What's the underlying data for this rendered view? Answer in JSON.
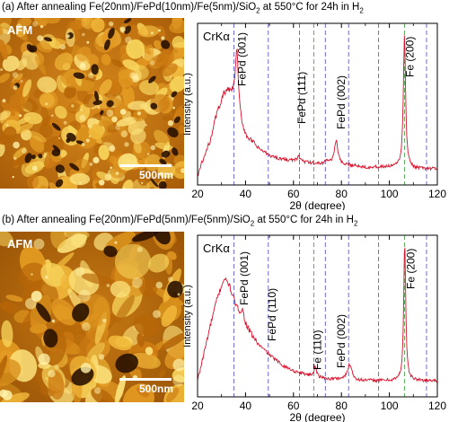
{
  "panels": [
    {
      "title_main": "(a) After annealing Fe(20nm)/FePd(10nm)/Fe(5nm)/SiO",
      "title_sub1": "2",
      "title_mid": " at 550",
      "title_deg": "°C",
      "title_end": " for 24h in H",
      "title_sub2": "2",
      "afm_label": "AFM",
      "scale_label": "500nm",
      "variant": "a"
    },
    {
      "title_main": "(b) After annealing Fe(20nm)/FePd(5nm)/Fe(5nm)/SiO",
      "title_sub1": "2",
      "title_mid": " at 550",
      "title_deg": "°C",
      "title_end": " for 24h in H",
      "title_sub2": "2",
      "afm_label": "AFM",
      "scale_label": "500nm",
      "variant": "b"
    }
  ],
  "colors": {
    "spectrum": "#d8122c",
    "ref_blue": "#5c5cc8",
    "ref_green": "#4aa84a"
  },
  "chart_data": [
    {
      "type": "line",
      "xlabel": "2θ (degree)",
      "ylabel": "Intensity (a.u.)",
      "source_label": "CrKα",
      "xlim": [
        20,
        120
      ],
      "xticks": [
        20,
        40,
        60,
        80,
        100,
        120
      ],
      "ref_lines_blue": [
        35.2,
        49.5,
        62.5,
        73.3,
        83.0,
        95.5,
        115.5
      ],
      "ref_lines_green": [
        68.5,
        106.3
      ],
      "annotations": [
        {
          "text": "FePd (001)",
          "x": 38.5
        },
        {
          "text": "FePd (111)",
          "x": 63.5
        },
        {
          "text": "FePd (002)",
          "x": 80.0
        },
        {
          "text": "Fe (200)",
          "x": 108.5
        }
      ],
      "baseline": [
        [
          20,
          0.06
        ],
        [
          25,
          0.26
        ],
        [
          28,
          0.44
        ],
        [
          31,
          0.56
        ],
        [
          33,
          0.57
        ],
        [
          35,
          0.52
        ],
        [
          37,
          0.4
        ],
        [
          40,
          0.3
        ],
        [
          45,
          0.23
        ],
        [
          50,
          0.18
        ],
        [
          55,
          0.16
        ],
        [
          60,
          0.15
        ],
        [
          65,
          0.14
        ],
        [
          70,
          0.13
        ],
        [
          75,
          0.13
        ],
        [
          80,
          0.12
        ],
        [
          85,
          0.12
        ],
        [
          90,
          0.11
        ],
        [
          95,
          0.11
        ],
        [
          100,
          0.11
        ],
        [
          105,
          0.11
        ],
        [
          110,
          0.1
        ],
        [
          115,
          0.1
        ],
        [
          120,
          0.1
        ]
      ],
      "peaks": [
        {
          "x": 36.4,
          "height": 0.4,
          "width": 0.8
        },
        {
          "x": 62.3,
          "height": 0.03,
          "width": 0.8
        },
        {
          "x": 73.8,
          "height": 0.02,
          "width": 0.8
        },
        {
          "x": 77.8,
          "height": 0.15,
          "width": 0.9
        },
        {
          "x": 106.3,
          "height": 0.82,
          "width": 0.55
        }
      ]
    },
    {
      "type": "line",
      "xlabel": "2θ (degree)",
      "ylabel": "Intensity (a.u.)",
      "source_label": "CrKα",
      "xlim": [
        20,
        120
      ],
      "xticks": [
        20,
        40,
        60,
        80,
        100,
        120
      ],
      "ref_lines_blue": [
        35.2,
        49.5,
        62.5,
        73.3,
        83.0,
        95.5,
        115.5
      ],
      "ref_lines_green": [
        68.5,
        106.3
      ],
      "annotations": [
        {
          "text": "FePd (001)",
          "x": 39.5
        },
        {
          "text": "FePd (110)",
          "x": 51.0
        },
        {
          "text": "Fe (110)",
          "x": 70.0
        },
        {
          "text": "FePd (002)",
          "x": 80.0
        },
        {
          "text": "Fe (200)",
          "x": 109.0
        }
      ],
      "baseline": [
        [
          20,
          0.1
        ],
        [
          25,
          0.42
        ],
        [
          28,
          0.6
        ],
        [
          31,
          0.73
        ],
        [
          33,
          0.7
        ],
        [
          36,
          0.56
        ],
        [
          40,
          0.44
        ],
        [
          45,
          0.33
        ],
        [
          50,
          0.26
        ],
        [
          55,
          0.2
        ],
        [
          60,
          0.16
        ],
        [
          65,
          0.14
        ],
        [
          70,
          0.12
        ],
        [
          75,
          0.11
        ],
        [
          80,
          0.11
        ],
        [
          85,
          0.1
        ],
        [
          90,
          0.1
        ],
        [
          95,
          0.1
        ],
        [
          100,
          0.1
        ],
        [
          105,
          0.1
        ],
        [
          110,
          0.1
        ],
        [
          115,
          0.1
        ],
        [
          120,
          0.1
        ]
      ],
      "peaks": [
        {
          "x": 38.8,
          "height": 0.06,
          "width": 0.9
        },
        {
          "x": 69.1,
          "height": 0.07,
          "width": 0.6
        },
        {
          "x": 83.5,
          "height": 0.1,
          "width": 1.1
        },
        {
          "x": 106.4,
          "height": 0.86,
          "width": 0.5
        }
      ]
    }
  ]
}
